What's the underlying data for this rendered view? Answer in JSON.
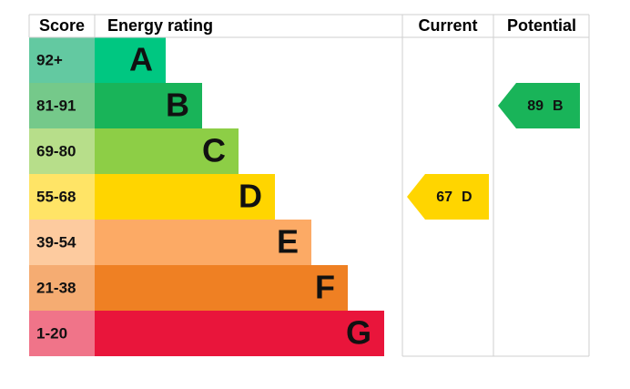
{
  "header": {
    "score": "Score",
    "energy_rating": "Energy rating",
    "current": "Current",
    "potential": "Potential"
  },
  "bands": [
    {
      "score": "92+",
      "letter": "A",
      "color": "#00c781",
      "score_color": "#63c9a1"
    },
    {
      "score": "81-91",
      "letter": "B",
      "color": "#19b459",
      "score_color": "#75c98a"
    },
    {
      "score": "69-80",
      "letter": "C",
      "color": "#8dce46",
      "score_color": "#b7de8a"
    },
    {
      "score": "55-68",
      "letter": "D",
      "color": "#ffd500",
      "score_color": "#ffe466"
    },
    {
      "score": "39-54",
      "letter": "E",
      "color": "#fcaa65",
      "score_color": "#fdcb9f"
    },
    {
      "score": "21-38",
      "letter": "F",
      "color": "#ef8023",
      "score_color": "#f5ac72"
    },
    {
      "score": "1-20",
      "letter": "G",
      "color": "#e9153b",
      "score_color": "#f07489"
    }
  ],
  "current": {
    "value": 67,
    "rating": "D"
  },
  "potential": {
    "value": 89,
    "rating": "B"
  }
}
